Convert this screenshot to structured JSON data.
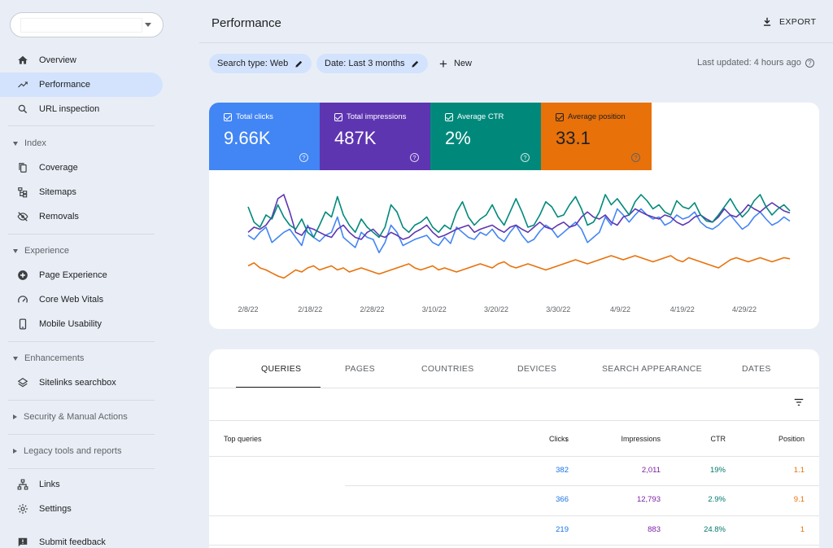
{
  "header": {
    "title": "Performance",
    "export_label": "EXPORT"
  },
  "filters": {
    "search_type": "Search type: Web",
    "date": "Date: Last 3 months",
    "new_label": "New",
    "last_updated": "Last updated: 4 hours ago"
  },
  "sidebar": {
    "items": [
      {
        "label": "Overview",
        "icon": "home-icon"
      },
      {
        "label": "Performance",
        "icon": "trending-up-icon",
        "active": true
      },
      {
        "label": "URL inspection",
        "icon": "search-icon"
      }
    ],
    "sections": [
      {
        "label": "Index",
        "expanded": true,
        "items": [
          {
            "label": "Coverage",
            "icon": "file-copy-icon"
          },
          {
            "label": "Sitemaps",
            "icon": "sitemap-icon"
          },
          {
            "label": "Removals",
            "icon": "eye-off-icon"
          }
        ]
      },
      {
        "label": "Experience",
        "expanded": true,
        "items": [
          {
            "label": "Page Experience",
            "icon": "add-circle-icon"
          },
          {
            "label": "Core Web Vitals",
            "icon": "speed-icon"
          },
          {
            "label": "Mobile Usability",
            "icon": "phone-icon"
          }
        ]
      },
      {
        "label": "Enhancements",
        "expanded": true,
        "items": [
          {
            "label": "Sitelinks searchbox",
            "icon": "layers-icon"
          }
        ]
      },
      {
        "label": "Security & Manual Actions",
        "expanded": false,
        "items": []
      },
      {
        "label": "Legacy tools and reports",
        "expanded": false,
        "items": []
      }
    ],
    "bottom_items": [
      {
        "label": "Links",
        "icon": "links-icon"
      },
      {
        "label": "Settings",
        "icon": "gear-icon"
      },
      {
        "label": "Submit feedback",
        "icon": "feedback-icon"
      }
    ]
  },
  "metrics": [
    {
      "label": "Total clicks",
      "value": "9.66K",
      "color": "#4285f4"
    },
    {
      "label": "Total impressions",
      "value": "487K",
      "color": "#5e35b1"
    },
    {
      "label": "Average CTR",
      "value": "2%",
      "color": "#00897b"
    },
    {
      "label": "Average position",
      "value": "33.1",
      "color": "#e8710a"
    }
  ],
  "chart_data": {
    "type": "line",
    "x_tick_labels": [
      "2/8/22",
      "2/18/22",
      "2/28/22",
      "3/10/22",
      "3/20/22",
      "3/30/22",
      "4/9/22",
      "4/19/22",
      "4/29/22"
    ],
    "y_axis_visible": false,
    "grid": false,
    "series": [
      {
        "name": "Total clicks",
        "color": "#4285f4",
        "values": [
          0.52,
          0.48,
          0.55,
          0.6,
          0.45,
          0.5,
          0.55,
          0.58,
          0.5,
          0.42,
          0.62,
          0.5,
          0.46,
          0.52,
          0.55,
          0.7,
          0.5,
          0.45,
          0.4,
          0.55,
          0.5,
          0.48,
          0.35,
          0.45,
          0.62,
          0.55,
          0.42,
          0.45,
          0.48,
          0.5,
          0.52,
          0.45,
          0.42,
          0.5,
          0.44,
          0.6,
          0.55,
          0.5,
          0.48,
          0.55,
          0.52,
          0.58,
          0.5,
          0.46,
          0.55,
          0.62,
          0.52,
          0.45,
          0.48,
          0.56,
          0.62,
          0.58,
          0.5,
          0.55,
          0.6,
          0.65,
          0.58,
          0.45,
          0.5,
          0.55,
          0.7,
          0.62,
          0.78,
          0.72,
          0.65,
          0.72,
          0.78,
          0.72,
          0.68,
          0.7,
          0.62,
          0.65,
          0.72,
          0.68,
          0.7,
          0.75,
          0.65,
          0.6,
          0.58,
          0.62,
          0.68,
          0.72,
          0.65,
          0.58,
          0.62,
          0.7,
          0.75,
          0.68,
          0.62,
          0.65,
          0.7,
          0.66
        ]
      },
      {
        "name": "Total impressions",
        "color": "#5e35b1",
        "values": [
          0.55,
          0.6,
          0.58,
          0.62,
          0.7,
          0.88,
          0.92,
          0.75,
          0.55,
          0.52,
          0.6,
          0.58,
          0.55,
          0.52,
          0.5,
          0.58,
          0.62,
          0.55,
          0.5,
          0.48,
          0.55,
          0.58,
          0.52,
          0.5,
          0.55,
          0.52,
          0.48,
          0.5,
          0.55,
          0.58,
          0.62,
          0.55,
          0.5,
          0.52,
          0.55,
          0.58,
          0.6,
          0.62,
          0.55,
          0.58,
          0.6,
          0.62,
          0.58,
          0.55,
          0.6,
          0.62,
          0.58,
          0.55,
          0.6,
          0.65,
          0.6,
          0.58,
          0.62,
          0.65,
          0.6,
          0.62,
          0.7,
          0.75,
          0.7,
          0.68,
          0.72,
          0.65,
          0.62,
          0.7,
          0.72,
          0.78,
          0.75,
          0.72,
          0.7,
          0.68,
          0.72,
          0.7,
          0.65,
          0.62,
          0.65,
          0.7,
          0.72,
          0.68,
          0.65,
          0.7,
          0.78,
          0.72,
          0.7,
          0.75,
          0.82,
          0.78,
          0.75,
          0.8,
          0.84,
          0.8,
          0.76,
          0.74
        ]
      },
      {
        "name": "Average CTR",
        "color": "#00897b",
        "values": [
          0.8,
          0.65,
          0.6,
          0.72,
          0.68,
          0.82,
          0.7,
          0.62,
          0.58,
          0.68,
          0.55,
          0.5,
          0.62,
          0.75,
          0.7,
          0.9,
          0.72,
          0.62,
          0.55,
          0.68,
          0.6,
          0.55,
          0.5,
          0.6,
          0.82,
          0.75,
          0.6,
          0.55,
          0.62,
          0.65,
          0.7,
          0.6,
          0.55,
          0.62,
          0.58,
          0.75,
          0.85,
          0.7,
          0.62,
          0.68,
          0.72,
          0.82,
          0.7,
          0.62,
          0.75,
          0.88,
          0.75,
          0.6,
          0.62,
          0.72,
          0.85,
          0.8,
          0.7,
          0.72,
          0.82,
          0.9,
          0.78,
          0.62,
          0.65,
          0.75,
          0.92,
          0.82,
          0.88,
          0.8,
          0.72,
          0.85,
          0.92,
          0.86,
          0.78,
          0.82,
          0.75,
          0.72,
          0.86,
          0.8,
          0.78,
          0.84,
          0.72,
          0.66,
          0.65,
          0.72,
          0.8,
          0.88,
          0.78,
          0.7,
          0.76,
          0.86,
          0.92,
          0.8,
          0.72,
          0.78,
          0.82,
          0.76
        ]
      },
      {
        "name": "Average position",
        "color": "#e8710a",
        "values": [
          0.22,
          0.25,
          0.2,
          0.18,
          0.15,
          0.12,
          0.1,
          0.14,
          0.18,
          0.16,
          0.2,
          0.22,
          0.18,
          0.2,
          0.22,
          0.18,
          0.2,
          0.16,
          0.18,
          0.2,
          0.18,
          0.16,
          0.14,
          0.16,
          0.18,
          0.2,
          0.22,
          0.24,
          0.2,
          0.18,
          0.2,
          0.22,
          0.18,
          0.2,
          0.18,
          0.16,
          0.18,
          0.2,
          0.22,
          0.24,
          0.22,
          0.2,
          0.24,
          0.26,
          0.22,
          0.2,
          0.22,
          0.24,
          0.22,
          0.2,
          0.18,
          0.2,
          0.22,
          0.24,
          0.26,
          0.28,
          0.26,
          0.24,
          0.26,
          0.28,
          0.3,
          0.32,
          0.3,
          0.28,
          0.3,
          0.32,
          0.3,
          0.28,
          0.26,
          0.28,
          0.3,
          0.32,
          0.28,
          0.26,
          0.3,
          0.28,
          0.26,
          0.24,
          0.22,
          0.2,
          0.24,
          0.28,
          0.3,
          0.28,
          0.26,
          0.28,
          0.3,
          0.28,
          0.26,
          0.28,
          0.3,
          0.29
        ]
      }
    ]
  },
  "tabs": [
    {
      "label": "QUERIES",
      "active": true
    },
    {
      "label": "PAGES"
    },
    {
      "label": "COUNTRIES"
    },
    {
      "label": "DEVICES"
    },
    {
      "label": "SEARCH APPEARANCE"
    },
    {
      "label": "DATES"
    }
  ],
  "table": {
    "columns": [
      "Top queries",
      "Clicks",
      "Impressions",
      "CTR",
      "Position"
    ],
    "rows": [
      {
        "query": "",
        "clicks": "382",
        "impressions": "2,011",
        "ctr": "19%",
        "position": "1.1"
      },
      {
        "query": "",
        "clicks": "366",
        "impressions": "12,793",
        "ctr": "2.9%",
        "position": "9.1"
      },
      {
        "query": "",
        "clicks": "219",
        "impressions": "883",
        "ctr": "24.8%",
        "position": "1"
      }
    ]
  }
}
